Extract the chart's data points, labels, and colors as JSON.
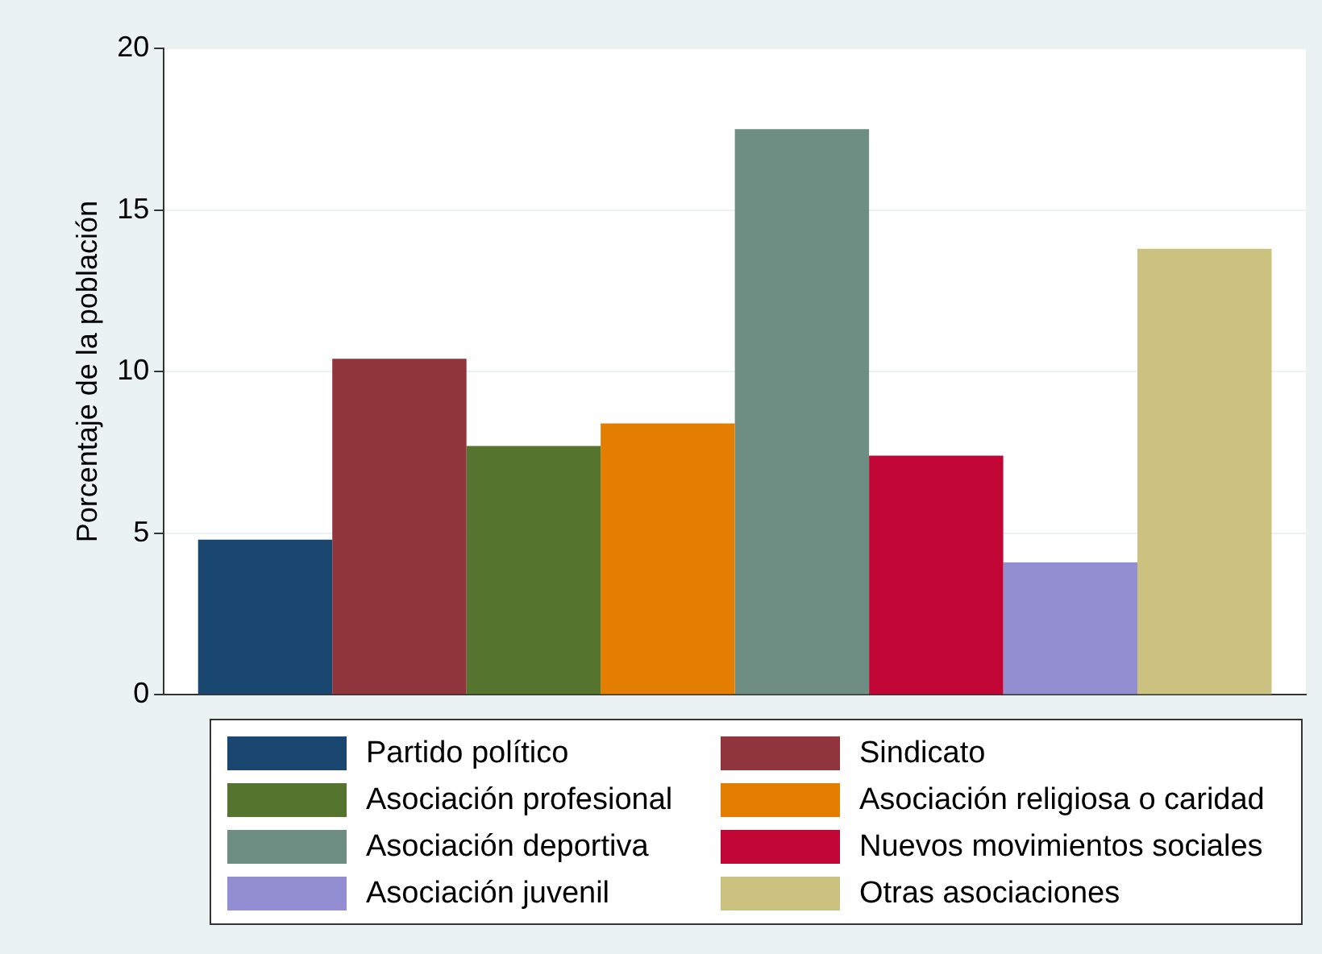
{
  "chart_data": {
    "type": "bar",
    "ylabel": "Porcentaje de la población",
    "categories": [
      null
    ],
    "series": [
      {
        "name": "Partido político",
        "color": "#1a476f",
        "values": [
          4.8
        ]
      },
      {
        "name": "Sindicato",
        "color": "#90353b",
        "values": [
          10.4
        ]
      },
      {
        "name": "Asociación profesional",
        "color": "#55752f",
        "values": [
          7.7
        ]
      },
      {
        "name": "Asociación religiosa o caridad",
        "color": "#e37e00",
        "values": [
          8.4
        ]
      },
      {
        "name": "Asociación deportiva",
        "color": "#6e8e84",
        "values": [
          17.5
        ]
      },
      {
        "name": "Nuevos movimientos sociales",
        "color": "#c10534",
        "values": [
          7.4
        ]
      },
      {
        "name": "Asociación juvenil",
        "color": "#938dd2",
        "values": [
          4.1
        ]
      },
      {
        "name": "Otras asociaciones",
        "color": "#cac27e",
        "values": [
          13.8
        ]
      }
    ],
    "ylim": [
      0,
      20
    ],
    "yticks": [
      0,
      5,
      10,
      15,
      20
    ],
    "grid": "y",
    "legend": "bottom"
  }
}
